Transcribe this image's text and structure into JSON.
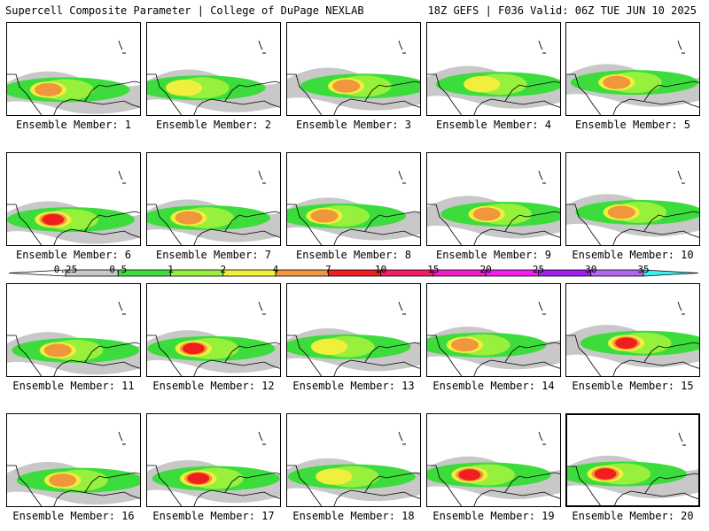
{
  "header": {
    "left": "Supercell Composite Parameter | College of DuPage NEXLAB",
    "right": "18Z GEFS | F036 Valid: 06Z TUE JUN 10 2025"
  },
  "colorbar": {
    "levels": [
      "0.25",
      "0.5",
      "1",
      "2",
      "4",
      "7",
      "10",
      "15",
      "20",
      "25",
      "30",
      "35"
    ],
    "colors": [
      "#c8c8c8",
      "#3cdc3c",
      "#96f03c",
      "#f0f03c",
      "#f0963c",
      "#f01e1e",
      "#f01e64",
      "#f01ec8",
      "#f01ef0",
      "#a01ef0",
      "#b464f0",
      "#3cf0f0"
    ]
  },
  "members": [
    {
      "label": "Ensemble Member: 1",
      "max": 4
    },
    {
      "label": "Ensemble Member: 2",
      "max": 3
    },
    {
      "label": "Ensemble Member: 3",
      "max": 4
    },
    {
      "label": "Ensemble Member: 4",
      "max": 3
    },
    {
      "label": "Ensemble Member: 5",
      "max": 4
    },
    {
      "label": "Ensemble Member: 6",
      "max": 5
    },
    {
      "label": "Ensemble Member: 7",
      "max": 4
    },
    {
      "label": "Ensemble Member: 8",
      "max": 4
    },
    {
      "label": "Ensemble Member: 9",
      "max": 4
    },
    {
      "label": "Ensemble Member: 10",
      "max": 4
    },
    {
      "label": "Ensemble Member: 11",
      "max": 4
    },
    {
      "label": "Ensemble Member: 12",
      "max": 5
    },
    {
      "label": "Ensemble Member: 13",
      "max": 3
    },
    {
      "label": "Ensemble Member: 14",
      "max": 4
    },
    {
      "label": "Ensemble Member: 15",
      "max": 5
    },
    {
      "label": "Ensemble Member: 16",
      "max": 4
    },
    {
      "label": "Ensemble Member: 17",
      "max": 5
    },
    {
      "label": "Ensemble Member: 18",
      "max": 3
    },
    {
      "label": "Ensemble Member: 19",
      "max": 5
    },
    {
      "label": "Ensemble Member: 20",
      "max": 5
    }
  ],
  "selected_member": 20
}
